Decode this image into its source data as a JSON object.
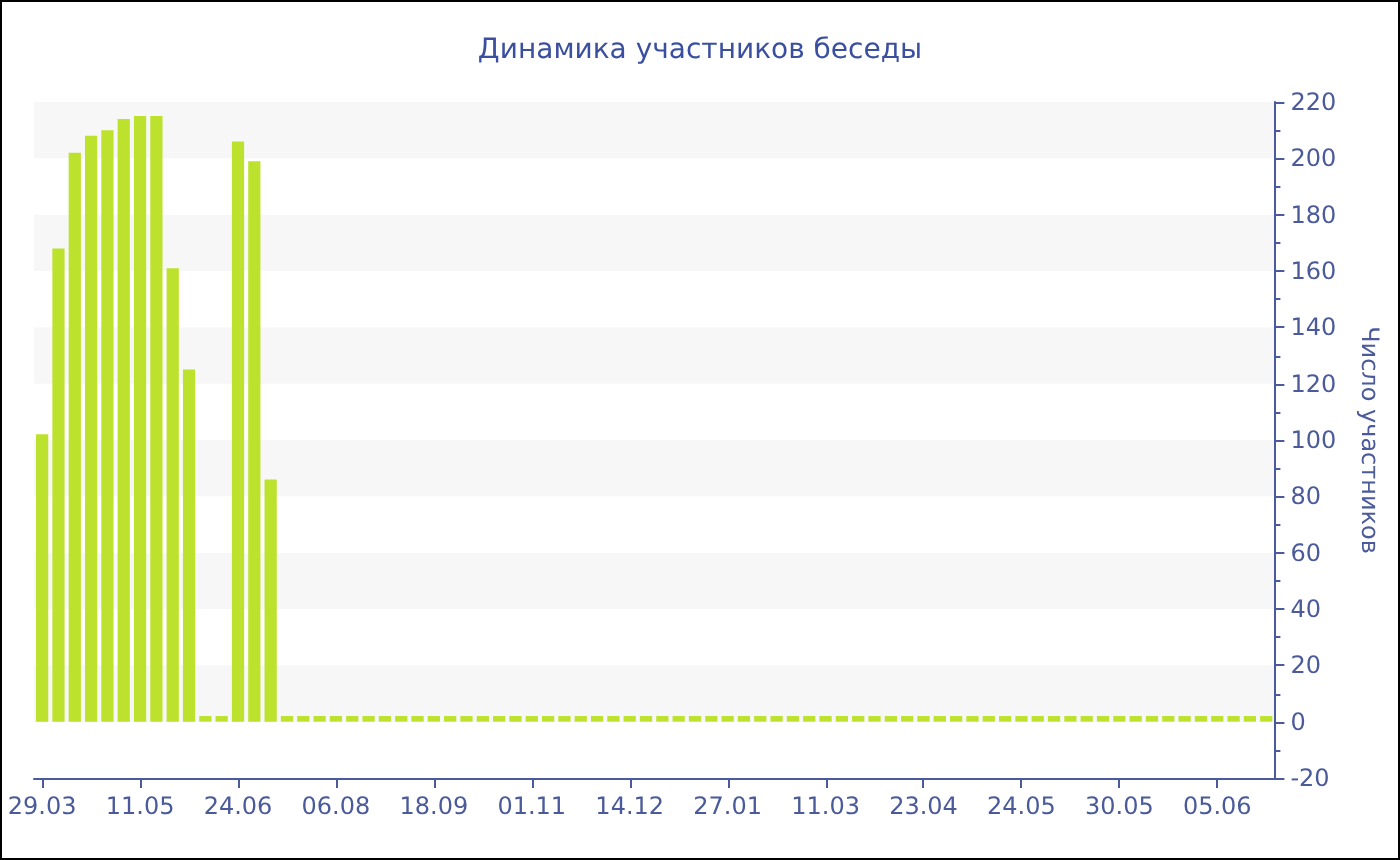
{
  "chart_data": {
    "type": "bar",
    "title": "Динамика участников беседы",
    "ylabel": "Число участников",
    "categories": [
      "29.03",
      null,
      null,
      null,
      null,
      null,
      "11.05",
      null,
      null,
      null,
      null,
      null,
      "24.06",
      null,
      null,
      null,
      null,
      null,
      "06.08",
      null,
      null,
      null,
      null,
      null,
      "18.09",
      null,
      null,
      null,
      null,
      null,
      "01.11",
      null,
      null,
      null,
      null,
      null,
      "14.12",
      null,
      null,
      null,
      null,
      null,
      "27.01",
      null,
      null,
      null,
      null,
      null,
      "11.03",
      null,
      null,
      null,
      null,
      null,
      "23.04",
      null,
      null,
      null,
      null,
      null,
      "24.05",
      null,
      null,
      null,
      null,
      null,
      "30.05",
      null,
      null,
      null,
      null,
      null,
      "05.06",
      null,
      null,
      null
    ],
    "values": [
      102,
      168,
      202,
      208,
      210,
      214,
      215,
      215,
      161,
      125,
      2,
      2,
      206,
      199,
      86,
      2,
      2,
      2,
      2,
      2,
      2,
      2,
      2,
      2,
      2,
      2,
      2,
      2,
      2,
      2,
      2,
      2,
      2,
      2,
      2,
      2,
      2,
      2,
      2,
      2,
      2,
      2,
      2,
      2,
      2,
      2,
      2,
      2,
      2,
      2,
      2,
      2,
      2,
      2,
      2,
      2,
      2,
      2,
      2,
      2,
      2,
      2,
      2,
      2,
      2,
      2,
      2,
      2,
      2,
      2,
      2,
      2,
      2,
      2,
      2,
      2
    ],
    "color": "#bde22e",
    "ylim": [
      -20,
      220
    ],
    "yticks": [
      -20,
      0,
      20,
      40,
      60,
      80,
      100,
      120,
      140,
      160,
      180,
      200,
      220
    ],
    "grid": false
  }
}
